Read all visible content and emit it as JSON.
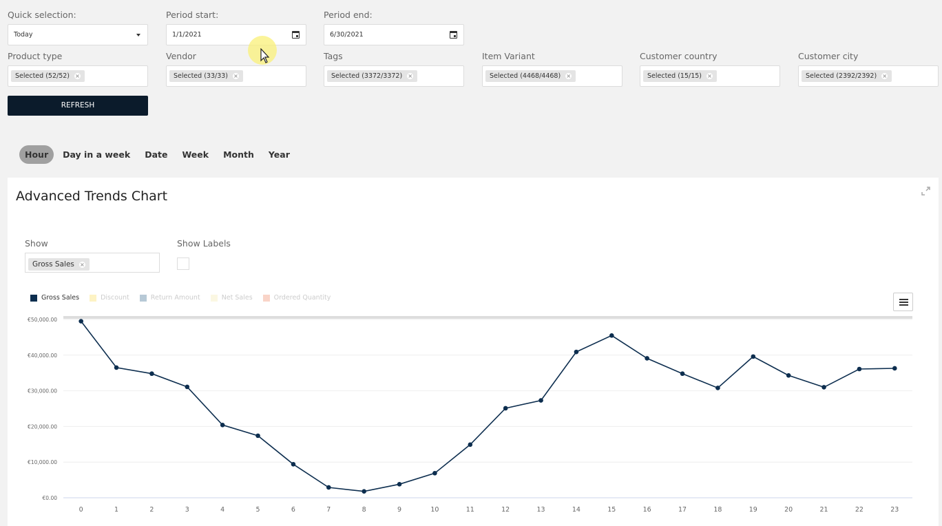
{
  "filters": {
    "quick_selection": {
      "label": "Quick selection:",
      "value": "Today"
    },
    "period_start": {
      "label": "Period start:",
      "value": "1/1/2021"
    },
    "period_end": {
      "label": "Period end:",
      "value": "6/30/2021"
    },
    "product_type": {
      "label": "Product type",
      "tag": "Selected (52/52)"
    },
    "vendor": {
      "label": "Vendor",
      "tag": "Selected (33/33)"
    },
    "tags": {
      "label": "Tags",
      "tag": "Selected (3372/3372)"
    },
    "item_variant": {
      "label": "Item Variant",
      "tag": "Selected (4468/4468)"
    },
    "customer_country": {
      "label": "Customer country",
      "tag": "Selected (15/15)"
    },
    "customer_city": {
      "label": "Customer city",
      "tag": "Selected (2392/2392)"
    },
    "refresh_label": "REFRESH",
    "tag_remove_glyph": "×"
  },
  "grouping": {
    "active": "Hour",
    "tabs": [
      "Hour",
      "Day in a week",
      "Date",
      "Week",
      "Month",
      "Year"
    ]
  },
  "card": {
    "title": "Advanced Trends Chart",
    "show_label": "Show",
    "show_tag": "Gross Sales",
    "show_labels_label": "Show Labels"
  },
  "colors": {
    "gross_sales": "#0d2e4f",
    "discount": "#fdf3c4",
    "return_amount": "#b7c9d6",
    "net_sales": "#fbf7e2",
    "ordered_quantity": "#f9d4c8"
  },
  "chart_data": {
    "type": "line",
    "legend": [
      {
        "name": "Gross Sales",
        "active": true
      },
      {
        "name": "Discount",
        "active": false
      },
      {
        "name": "Return Amount",
        "active": false
      },
      {
        "name": "Net Sales",
        "active": false
      },
      {
        "name": "Ordered Quantity",
        "active": false
      }
    ],
    "legend_placement": "top-left",
    "x": [
      0,
      1,
      2,
      3,
      4,
      5,
      6,
      7,
      8,
      9,
      10,
      11,
      12,
      13,
      14,
      15,
      16,
      17,
      18,
      19,
      20,
      21,
      22,
      23
    ],
    "x_tick_labels": [
      "0",
      "1",
      "2",
      "3",
      "4",
      "5",
      "6",
      "7",
      "8",
      "9",
      "10",
      "11",
      "12",
      "13",
      "14",
      "15",
      "16",
      "17",
      "18",
      "19",
      "20",
      "21",
      "22",
      "23"
    ],
    "series": [
      {
        "name": "Gross Sales",
        "values": [
          49500,
          36500,
          34800,
          31100,
          20400,
          17400,
          9400,
          2900,
          1800,
          3800,
          6900,
          14900,
          25100,
          27300,
          40900,
          45500,
          39100,
          34800,
          30800,
          39600,
          34300,
          31000,
          36100,
          36300
        ]
      }
    ],
    "ylim": [
      0,
      50000
    ],
    "y_tick_values": [
      0,
      10000,
      20000,
      30000,
      40000,
      50000
    ],
    "y_tick_labels": [
      "€0.00",
      "€10,000.00",
      "€20,000.00",
      "€30,000.00",
      "€40,000.00",
      "€50,000.00"
    ],
    "grid": true
  }
}
